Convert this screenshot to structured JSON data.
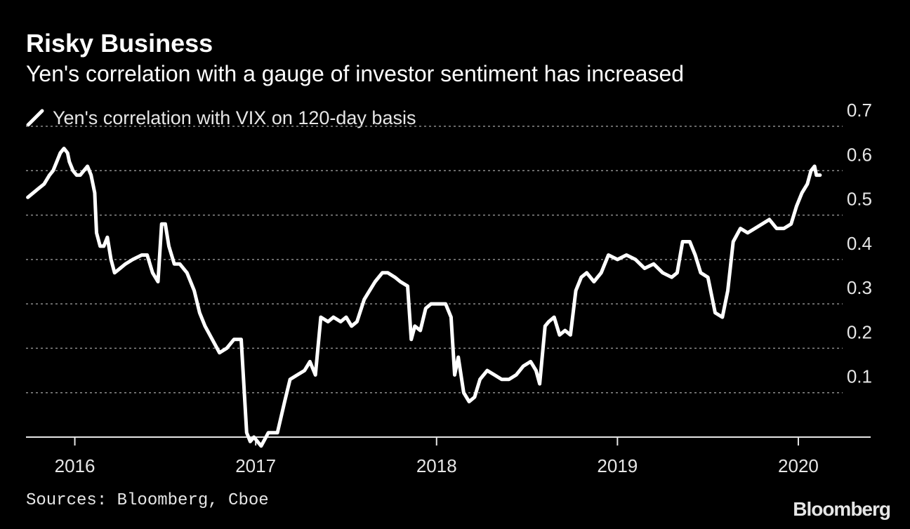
{
  "header": {
    "title": "Risky Business",
    "subtitle": "Yen's correlation with a gauge of investor sentiment has increased"
  },
  "footer": {
    "source": "Sources: Bloomberg, Cboe",
    "brand": "Bloomberg"
  },
  "colors": {
    "background": "#000000",
    "line": "#ffffff",
    "grid": "#8c8c8c",
    "text": "#e6e6e6"
  },
  "chart_data": {
    "type": "line",
    "title": "Risky Business",
    "subtitle": "Yen's correlation with a gauge of investor sentiment has increased",
    "xlabel": "",
    "ylabel": "",
    "xlim": [
      2015.73,
      2020.4
    ],
    "ylim": [
      0.0,
      0.7
    ],
    "x_ticks": [
      2016,
      2017,
      2018,
      2019,
      2020
    ],
    "x_tick_labels": [
      "2016",
      "2017",
      "2018",
      "2019",
      "2020"
    ],
    "y_ticks": [
      0.1,
      0.2,
      0.3,
      0.4,
      0.5,
      0.6,
      0.7
    ],
    "y_tick_labels": [
      "0.1",
      "0.2",
      "0.3",
      "0.4",
      "0.5",
      "0.6",
      "0.7"
    ],
    "y_axis_side": "right",
    "grid": "horizontal dotted",
    "legend_position": "top-left",
    "series": [
      {
        "name": "Yen's correlation with VIX on 120-day basis",
        "color": "#ffffff",
        "points": [
          [
            2015.74,
            0.54
          ],
          [
            2015.77,
            0.55
          ],
          [
            2015.8,
            0.56
          ],
          [
            2015.83,
            0.57
          ],
          [
            2015.86,
            0.59
          ],
          [
            2015.88,
            0.6
          ],
          [
            2015.9,
            0.62
          ],
          [
            2015.92,
            0.64
          ],
          [
            2015.94,
            0.65
          ],
          [
            2015.96,
            0.64
          ],
          [
            2015.97,
            0.62
          ],
          [
            2015.99,
            0.6
          ],
          [
            2016.01,
            0.59
          ],
          [
            2016.03,
            0.59
          ],
          [
            2016.05,
            0.6
          ],
          [
            2016.07,
            0.61
          ],
          [
            2016.09,
            0.59
          ],
          [
            2016.11,
            0.55
          ],
          [
            2016.12,
            0.46
          ],
          [
            2016.14,
            0.43
          ],
          [
            2016.16,
            0.43
          ],
          [
            2016.18,
            0.45
          ],
          [
            2016.2,
            0.4
          ],
          [
            2016.22,
            0.37
          ],
          [
            2016.25,
            0.38
          ],
          [
            2016.28,
            0.39
          ],
          [
            2016.32,
            0.4
          ],
          [
            2016.37,
            0.41
          ],
          [
            2016.4,
            0.41
          ],
          [
            2016.43,
            0.37
          ],
          [
            2016.46,
            0.35
          ],
          [
            2016.48,
            0.48
          ],
          [
            2016.5,
            0.48
          ],
          [
            2016.52,
            0.43
          ],
          [
            2016.55,
            0.39
          ],
          [
            2016.58,
            0.39
          ],
          [
            2016.62,
            0.37
          ],
          [
            2016.66,
            0.33
          ],
          [
            2016.69,
            0.28
          ],
          [
            2016.72,
            0.25
          ],
          [
            2016.76,
            0.22
          ],
          [
            2016.8,
            0.19
          ],
          [
            2016.84,
            0.2
          ],
          [
            2016.88,
            0.22
          ],
          [
            2016.92,
            0.22
          ],
          [
            2016.95,
            0.01
          ],
          [
            2016.97,
            -0.01
          ],
          [
            2016.99,
            0.0
          ],
          [
            2017.01,
            -0.01
          ],
          [
            2017.03,
            -0.02
          ],
          [
            2017.07,
            0.01
          ],
          [
            2017.12,
            0.01
          ],
          [
            2017.16,
            0.08
          ],
          [
            2017.19,
            0.13
          ],
          [
            2017.23,
            0.14
          ],
          [
            2017.27,
            0.15
          ],
          [
            2017.3,
            0.17
          ],
          [
            2017.33,
            0.14
          ],
          [
            2017.36,
            0.27
          ],
          [
            2017.4,
            0.26
          ],
          [
            2017.43,
            0.27
          ],
          [
            2017.47,
            0.26
          ],
          [
            2017.5,
            0.27
          ],
          [
            2017.53,
            0.25
          ],
          [
            2017.56,
            0.26
          ],
          [
            2017.6,
            0.31
          ],
          [
            2017.63,
            0.33
          ],
          [
            2017.66,
            0.35
          ],
          [
            2017.7,
            0.37
          ],
          [
            2017.73,
            0.37
          ],
          [
            2017.77,
            0.36
          ],
          [
            2017.8,
            0.35
          ],
          [
            2017.84,
            0.34
          ],
          [
            2017.86,
            0.22
          ],
          [
            2017.88,
            0.25
          ],
          [
            2017.91,
            0.24
          ],
          [
            2017.94,
            0.29
          ],
          [
            2017.97,
            0.3
          ],
          [
            2018.01,
            0.3
          ],
          [
            2018.05,
            0.3
          ],
          [
            2018.08,
            0.27
          ],
          [
            2018.1,
            0.14
          ],
          [
            2018.12,
            0.18
          ],
          [
            2018.15,
            0.1
          ],
          [
            2018.18,
            0.08
          ],
          [
            2018.21,
            0.09
          ],
          [
            2018.24,
            0.13
          ],
          [
            2018.28,
            0.15
          ],
          [
            2018.32,
            0.14
          ],
          [
            2018.36,
            0.13
          ],
          [
            2018.4,
            0.13
          ],
          [
            2018.44,
            0.14
          ],
          [
            2018.48,
            0.16
          ],
          [
            2018.52,
            0.17
          ],
          [
            2018.55,
            0.15
          ],
          [
            2018.57,
            0.12
          ],
          [
            2018.6,
            0.25
          ],
          [
            2018.62,
            0.26
          ],
          [
            2018.65,
            0.27
          ],
          [
            2018.68,
            0.23
          ],
          [
            2018.71,
            0.24
          ],
          [
            2018.74,
            0.23
          ],
          [
            2018.77,
            0.33
          ],
          [
            2018.8,
            0.36
          ],
          [
            2018.83,
            0.37
          ],
          [
            2018.87,
            0.35
          ],
          [
            2018.91,
            0.37
          ],
          [
            2018.95,
            0.41
          ],
          [
            2019.0,
            0.4
          ],
          [
            2019.05,
            0.41
          ],
          [
            2019.1,
            0.4
          ],
          [
            2019.15,
            0.38
          ],
          [
            2019.2,
            0.39
          ],
          [
            2019.25,
            0.37
          ],
          [
            2019.3,
            0.36
          ],
          [
            2019.33,
            0.37
          ],
          [
            2019.36,
            0.44
          ],
          [
            2019.4,
            0.44
          ],
          [
            2019.43,
            0.41
          ],
          [
            2019.46,
            0.37
          ],
          [
            2019.5,
            0.36
          ],
          [
            2019.54,
            0.28
          ],
          [
            2019.58,
            0.27
          ],
          [
            2019.61,
            0.33
          ],
          [
            2019.64,
            0.44
          ],
          [
            2019.68,
            0.47
          ],
          [
            2019.72,
            0.46
          ],
          [
            2019.76,
            0.47
          ],
          [
            2019.8,
            0.48
          ],
          [
            2019.84,
            0.49
          ],
          [
            2019.88,
            0.47
          ],
          [
            2019.92,
            0.47
          ],
          [
            2019.96,
            0.48
          ],
          [
            2019.99,
            0.52
          ],
          [
            2020.02,
            0.55
          ],
          [
            2020.05,
            0.57
          ],
          [
            2020.07,
            0.6
          ],
          [
            2020.09,
            0.61
          ],
          [
            2020.1,
            0.59
          ],
          [
            2020.12,
            0.59
          ]
        ]
      }
    ]
  }
}
